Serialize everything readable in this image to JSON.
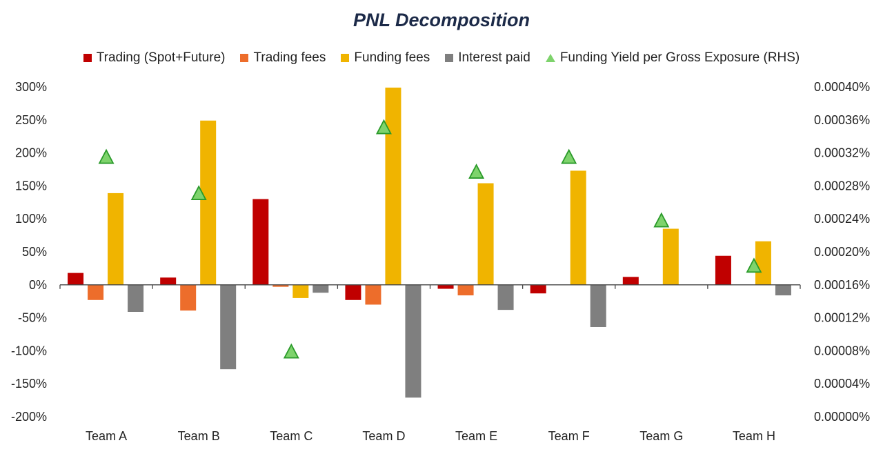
{
  "chart_data": {
    "type": "bar",
    "title": "PNL Decomposition",
    "categories": [
      "Team A",
      "Team B",
      "Team C",
      "Team D",
      "Team E",
      "Team F",
      "Team G",
      "Team H"
    ],
    "series": [
      {
        "name": "Trading (Spot+Future)",
        "color": "#c00000",
        "values": [
          18,
          11,
          130,
          -23,
          -6,
          -13,
          12,
          44
        ]
      },
      {
        "name": "Trading fees",
        "color": "#ed6d2b",
        "values": [
          -23,
          -39,
          -3,
          -30,
          -16,
          0,
          0,
          0
        ]
      },
      {
        "name": "Funding fees",
        "color": "#f0b400",
        "values": [
          139,
          249,
          -20,
          299,
          154,
          173,
          85,
          66
        ]
      },
      {
        "name": "Interest paid",
        "color": "#7f7f7f",
        "values": [
          -41,
          -128,
          -12,
          -171,
          -38,
          -64,
          0,
          -16
        ]
      }
    ],
    "secondary_series": {
      "name": "Funding Yield per Gross Exposure (RHS)",
      "color": "#7ed36c",
      "values": [
        0.000315,
        0.000271,
        7.9e-05,
        0.000351,
        0.000297,
        0.000315,
        0.000238,
        0.000183
      ]
    },
    "ylim_left": [
      -200,
      300
    ],
    "yticks_left": [
      "300%",
      "250%",
      "200%",
      "150%",
      "100%",
      "50%",
      "0%",
      "-50%",
      "-100%",
      "-150%",
      "-200%"
    ],
    "yticks_left_values": [
      300,
      250,
      200,
      150,
      100,
      50,
      0,
      -50,
      -100,
      -150,
      -200
    ],
    "ylim_right": [
      0,
      0.0004
    ],
    "yticks_right": [
      "0.00040%",
      "0.00036%",
      "0.00032%",
      "0.00028%",
      "0.00024%",
      "0.00020%",
      "0.00016%",
      "0.00012%",
      "0.00008%",
      "0.00004%",
      "0.00000%"
    ],
    "legend_position": "top",
    "grid": false
  }
}
